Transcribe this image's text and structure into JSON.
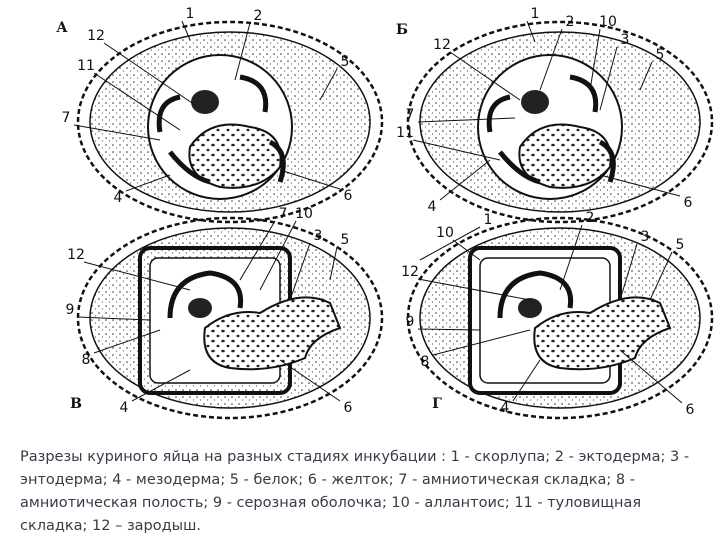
{
  "panels": [
    {
      "letter": "А",
      "labels": [
        "12",
        "1",
        "2",
        "11",
        "5",
        "7",
        "4",
        "6"
      ]
    },
    {
      "letter": "Б",
      "labels": [
        "1",
        "2",
        "10",
        "12",
        "3",
        "5",
        "7",
        "11",
        "4",
        "6"
      ]
    },
    {
      "letter": "В",
      "labels": [
        "7",
        "10",
        "3",
        "5",
        "12",
        "9",
        "8",
        "4",
        "6"
      ]
    },
    {
      "letter": "Г",
      "labels": [
        "10",
        "1",
        "2",
        "3",
        "5",
        "12",
        "9",
        "8",
        "4",
        "6"
      ]
    }
  ],
  "caption": "Разрезы куриного яйца на разных стадиях инкубации : 1 - скорлупа; 2 - эктодерма; 3 - энтодерма; 4 - мезодерма; 5 - белок; 6 - желток; 7 - амниотическая складка; 8 - амниотическая полость; 9 - серозная оболочка; 10 - аллантоис; 11 - туловищная складка; 12 – зародыш."
}
